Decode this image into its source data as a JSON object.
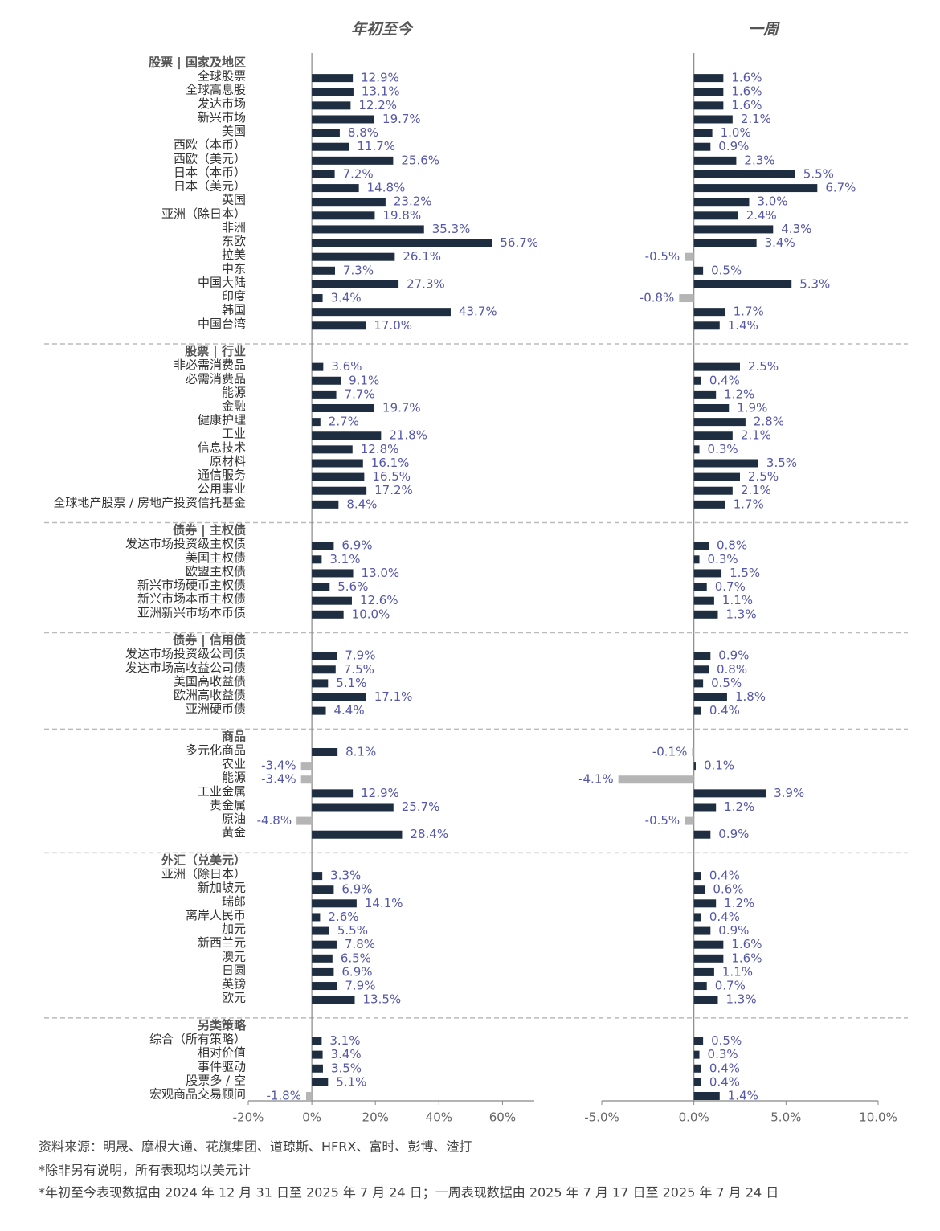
{
  "chart_data": {
    "type": "hbar-panels",
    "categories": [
      "股票 | 国家及地区",
      "全球股票",
      "全球高息股",
      "发达市场",
      "新兴市场",
      "美国",
      "西欧（本币）",
      "西欧（美元）",
      "日本（本币）",
      "日本（美元）",
      "英国",
      "亚洲（除日本）",
      "非洲",
      "东欧",
      "拉美",
      "中东",
      "中国大陆",
      "印度",
      "韩国",
      "中国台湾",
      "股票 | 行业",
      "非必需消费品",
      "必需消费品",
      "能源",
      "金融",
      "健康护理",
      "工业",
      "信息技术",
      "原材料",
      "通信服务",
      "公用事业",
      "全球地产股票 / 房地产投资信托基金",
      "债券 | 主权债",
      "发达市场投资级主权债",
      "美国主权债",
      "欧盟主权债",
      "新兴市场硬币主权债",
      "新兴市场本币主权债",
      "亚洲新兴市场本币债",
      "债券 | 信用债",
      "发达市场投资级公司债",
      "发达市场高收益公司债",
      "美国高收益债",
      "欧洲高收益债",
      "亚洲硬币债",
      "商品",
      "多元化商品",
      "农业",
      "能源",
      "工业金属",
      "贵金属",
      "原油",
      "黄金",
      "外汇（兑美元）",
      "亚洲（除日本）",
      "新加坡元",
      "瑞郎",
      "离岸人民币",
      "加元",
      "新西兰元",
      "澳元",
      "日圆",
      "英镑",
      "欧元",
      "另类策略",
      "综合（所有策略）",
      "相对价值",
      "事件驱动",
      "股票多 / 空",
      "宏观商品交易顾问"
    ],
    "color": "#1f2d40",
    "negative_color": "#b5b5b5",
    "series": [
      {
        "name": "年初至今",
        "values": [
          null,
          12.9,
          13.1,
          12.2,
          19.7,
          8.8,
          11.7,
          25.6,
          7.2,
          14.8,
          23.2,
          19.8,
          35.3,
          56.7,
          26.1,
          7.3,
          27.3,
          3.4,
          43.7,
          17.0,
          null,
          3.6,
          9.1,
          7.7,
          19.7,
          2.7,
          21.8,
          12.8,
          16.1,
          16.5,
          17.2,
          8.4,
          null,
          6.9,
          3.1,
          13.0,
          5.6,
          12.6,
          10.0,
          null,
          7.9,
          7.5,
          5.1,
          17.1,
          4.4,
          null,
          8.1,
          -3.4,
          -3.4,
          12.9,
          25.7,
          -4.8,
          28.4,
          null,
          3.3,
          6.9,
          14.1,
          2.6,
          5.5,
          7.8,
          6.5,
          6.9,
          7.9,
          13.5,
          null,
          3.1,
          3.4,
          3.5,
          5.1,
          -1.8
        ],
        "value_labels": [
          null,
          "12.9%",
          "13.1%",
          "12.2%",
          "19.7%",
          "8.8%",
          "11.7%",
          "25.6%",
          "7.2%",
          "14.8%",
          "23.2%",
          "19.8%",
          "35.3%",
          "56.7%",
          "26.1%",
          "7.3%",
          "27.3%",
          "3.4%",
          "43.7%",
          "17.0%",
          null,
          "3.6%",
          "9.1%",
          "7.7%",
          "19.7%",
          "2.7%",
          "21.8%",
          "12.8%",
          "16.1%",
          "16.5%",
          "17.2%",
          "8.4%",
          null,
          "6.9%",
          "3.1%",
          "13.0%",
          "5.6%",
          "12.6%",
          "10.0%",
          null,
          "7.9%",
          "7.5%",
          "5.1%",
          "17.1%",
          "4.4%",
          null,
          "8.1%",
          "-3.4%",
          "-3.4%",
          "12.9%",
          "25.7%",
          "-4.8%",
          "28.4%",
          null,
          "3.3%",
          "6.9%",
          "14.1%",
          "2.6%",
          "5.5%",
          "7.8%",
          "6.5%",
          "6.9%",
          "7.9%",
          "13.5%",
          null,
          "3.1%",
          "3.4%",
          "3.5%",
          "5.1%",
          "-1.8%"
        ],
        "xlim": [
          -20,
          70
        ],
        "xticks": [
          {
            "value": -20,
            "label": "-20%"
          },
          {
            "value": 0,
            "label": "0%"
          },
          {
            "value": 20,
            "label": "20%"
          },
          {
            "value": 40,
            "label": "40%"
          },
          {
            "value": 60,
            "label": "60%"
          }
        ]
      },
      {
        "name": "一周",
        "values": [
          null,
          1.6,
          1.6,
          1.6,
          2.1,
          1.0,
          0.9,
          2.3,
          5.5,
          6.7,
          3.0,
          2.4,
          4.3,
          3.4,
          -0.5,
          0.5,
          5.3,
          -0.8,
          1.7,
          1.4,
          null,
          2.5,
          0.4,
          1.2,
          1.9,
          2.8,
          2.1,
          0.3,
          3.5,
          2.5,
          2.1,
          1.7,
          null,
          0.8,
          0.3,
          1.5,
          0.7,
          1.1,
          1.3,
          null,
          0.9,
          0.8,
          0.5,
          1.8,
          0.4,
          null,
          -0.1,
          0.1,
          -4.1,
          3.9,
          1.2,
          -0.5,
          0.9,
          null,
          0.4,
          0.6,
          1.2,
          0.4,
          0.9,
          1.6,
          1.6,
          1.1,
          0.7,
          1.3,
          null,
          0.5,
          0.3,
          0.4,
          0.4,
          1.4
        ],
        "value_labels": [
          null,
          "1.6%",
          "1.6%",
          "1.6%",
          "2.1%",
          "1.0%",
          "0.9%",
          "2.3%",
          "5.5%",
          "6.7%",
          "3.0%",
          "2.4%",
          "4.3%",
          "3.4%",
          "-0.5%",
          "0.5%",
          "5.3%",
          "-0.8%",
          "1.7%",
          "1.4%",
          null,
          "2.5%",
          "0.4%",
          "1.2%",
          "1.9%",
          "2.8%",
          "2.1%",
          "0.3%",
          "3.5%",
          "2.5%",
          "2.1%",
          "1.7%",
          null,
          "0.8%",
          "0.3%",
          "1.5%",
          "0.7%",
          "1.1%",
          "1.3%",
          null,
          "0.9%",
          "0.8%",
          "0.5%",
          "1.8%",
          "0.4%",
          null,
          "-0.1%",
          "0.1%",
          "-4.1%",
          "3.9%",
          "1.2%",
          "-0.5%",
          "0.9%",
          null,
          "0.4%",
          "0.6%",
          "1.2%",
          "0.4%",
          "0.9%",
          "1.6%",
          "1.6%",
          "1.1%",
          "0.7%",
          "1.3%",
          null,
          "0.5%",
          "0.3%",
          "0.4%",
          "0.4%",
          "1.4%"
        ],
        "xlim": [
          -5,
          10
        ],
        "xticks": [
          {
            "value": -5,
            "label": "-5.0%"
          },
          {
            "value": 0,
            "label": "0.0%"
          },
          {
            "value": 5,
            "label": "5.0%"
          },
          {
            "value": 10,
            "label": "10.0%"
          }
        ]
      }
    ]
  },
  "notes": [
    "资料来源：明晟、摩根大通、花旗集团、道琼斯、HFRX、富时、彭博、渣打",
    "*除非另有说明，所有表现均以美元计",
    "*年初至今表现数据由 2024 年 12 月 31 日至 2025 年 7 月 24 日；一周表现数据由 2025 年 7 月 17 日至 2025 年 7 月 24 日"
  ]
}
